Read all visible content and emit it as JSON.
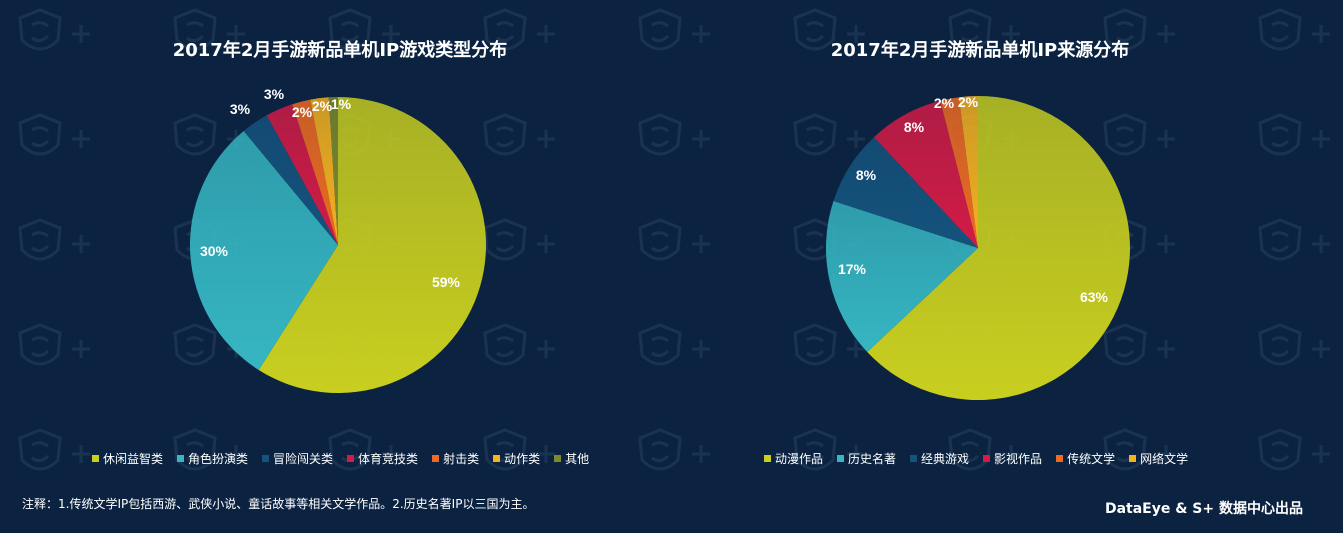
{
  "colors": {
    "background": "#0b2340",
    "palette": [
      "#c9cf1f",
      "#36b6c2",
      "#14537d",
      "#d21b46",
      "#ee6a22",
      "#f5b11f",
      "#7c8a2a"
    ]
  },
  "chart_data": [
    {
      "type": "pie",
      "title": "2017年2月手游新品单机IP游戏类型分布",
      "labels": [
        "休闲益智类",
        "角色扮演类",
        "冒险闯关类",
        "体育竞技类",
        "射击类",
        "动作类",
        "其他"
      ],
      "values": [
        59,
        30,
        3,
        3,
        2,
        2,
        1
      ],
      "value_labels": [
        "59%",
        "30%",
        "3%",
        "3%",
        "2%",
        "2%",
        "1%"
      ],
      "colors": [
        "#c9cf1f",
        "#36b6c2",
        "#14537d",
        "#d21b46",
        "#ee6a22",
        "#f5b11f",
        "#7c8a2a"
      ],
      "legend_position": "bottom"
    },
    {
      "type": "pie",
      "title": "2017年2月手游新品单机IP来源分布",
      "labels": [
        "动漫作品",
        "历史名著",
        "经典游戏",
        "影视作品",
        "传统文学",
        "网络文学"
      ],
      "values": [
        63,
        17,
        8,
        8,
        2,
        2
      ],
      "value_labels": [
        "63%",
        "17%",
        "8%",
        "8%",
        "2%",
        "2%"
      ],
      "colors": [
        "#c9cf1f",
        "#36b6c2",
        "#14537d",
        "#d21b46",
        "#ee6a22",
        "#f5b11f"
      ],
      "legend_position": "bottom"
    }
  ],
  "footnote": "注释：1.传统文学IP包括西游、武侠小说、童话故事等相关文学作品。2.历史名著IP以三国为主。",
  "credit": "DataEye & S+ 数据中心出品"
}
